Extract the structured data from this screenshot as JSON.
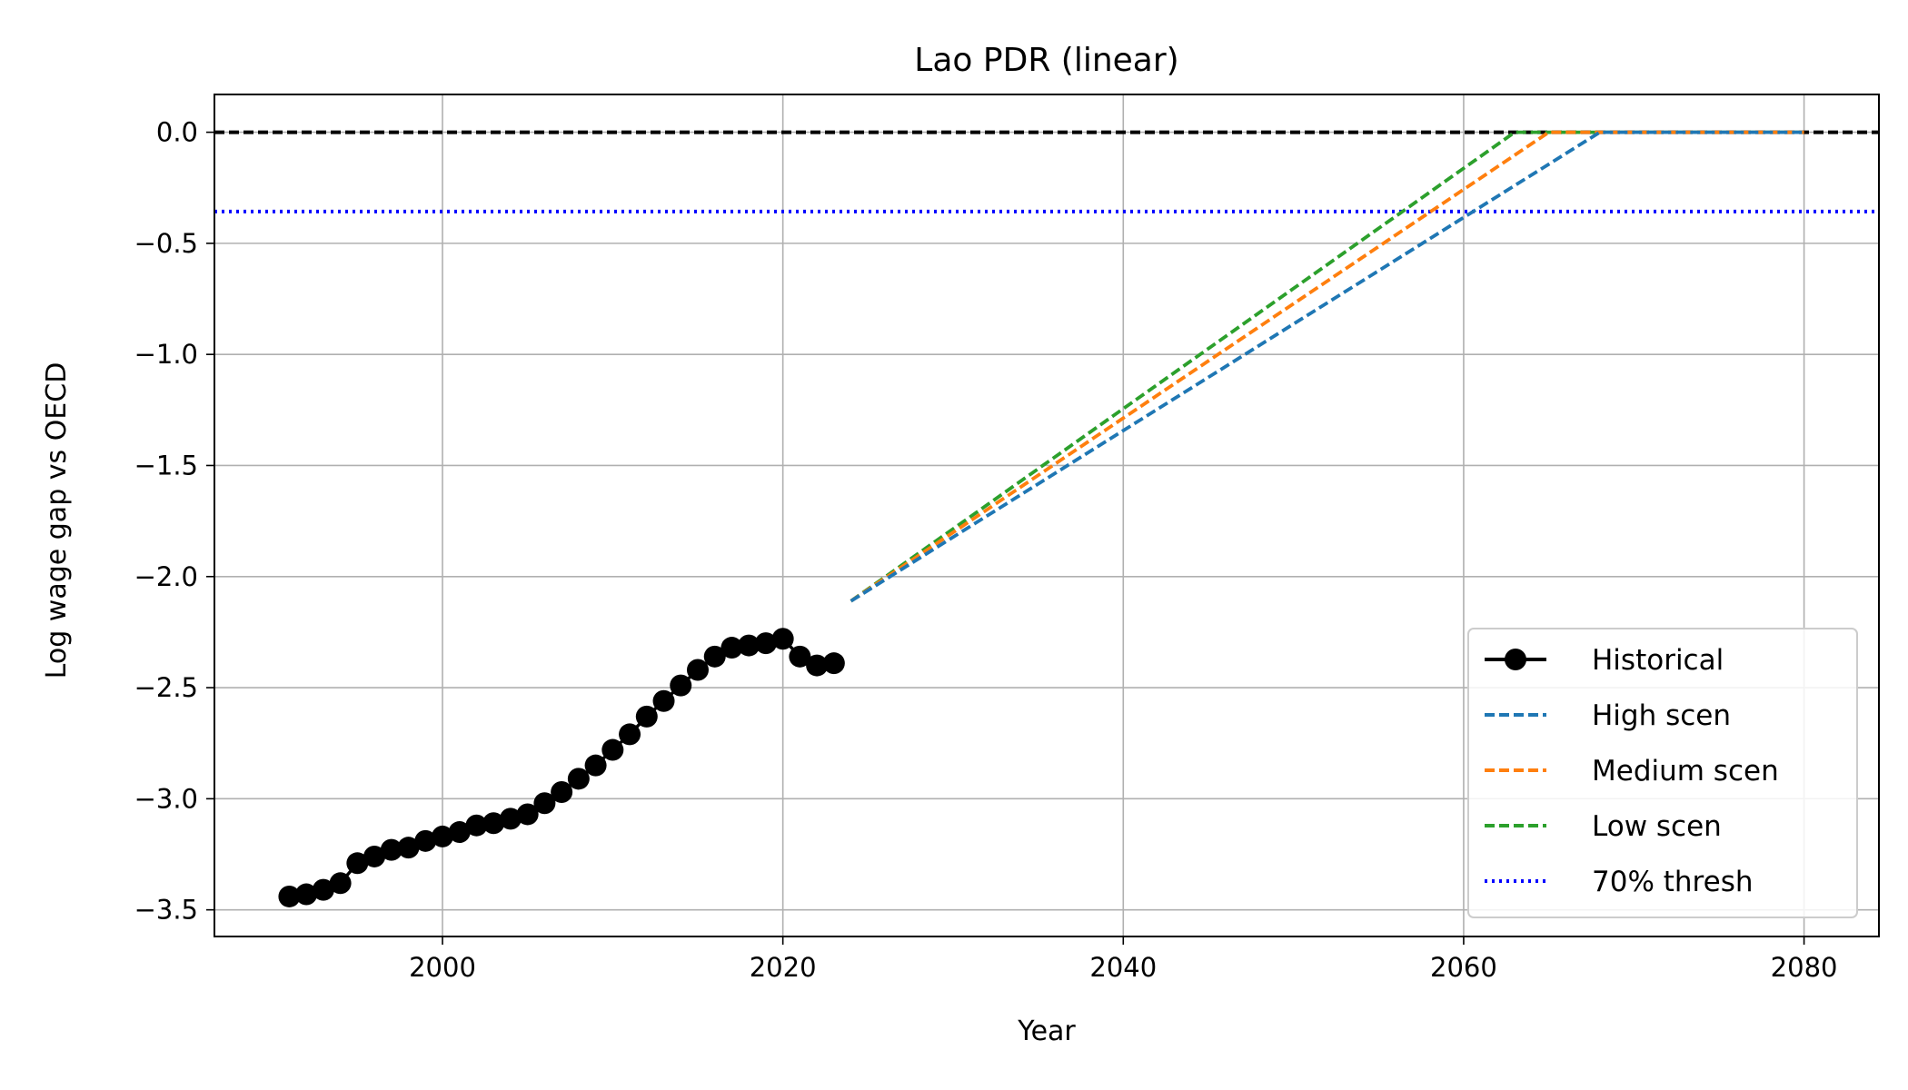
{
  "chart_data": {
    "type": "line",
    "title": "Lao PDR (linear)",
    "xlabel": "Year",
    "ylabel": "Log wage gap vs OECD",
    "xlim": [
      1986.6,
      2084.4
    ],
    "ylim": [
      -3.62,
      0.17
    ],
    "xticks": [
      2000,
      2020,
      2040,
      2060,
      2080
    ],
    "yticks": [
      0.0,
      -0.5,
      -1.0,
      -1.5,
      -2.0,
      -2.5,
      -3.0,
      -3.5
    ],
    "xtick_labels": [
      "2000",
      "2020",
      "2040",
      "2060",
      "2080"
    ],
    "ytick_labels": [
      "0.0",
      "−0.5",
      "−1.0",
      "−1.5",
      "−2.0",
      "−2.5",
      "−3.0",
      "−3.5"
    ],
    "grid": true,
    "legend_placement": "lower-right",
    "series": [
      {
        "name": "Historical",
        "color": "#000000",
        "style": "solid-marker",
        "x": [
          1991,
          1992,
          1993,
          1994,
          1995,
          1996,
          1997,
          1998,
          1999,
          2000,
          2001,
          2002,
          2003,
          2004,
          2005,
          2006,
          2007,
          2008,
          2009,
          2010,
          2011,
          2012,
          2013,
          2014,
          2015,
          2016,
          2017,
          2018,
          2019,
          2020,
          2021,
          2022,
          2023
        ],
        "y": [
          -3.44,
          -3.43,
          -3.41,
          -3.38,
          -3.29,
          -3.26,
          -3.23,
          -3.22,
          -3.19,
          -3.17,
          -3.15,
          -3.12,
          -3.11,
          -3.09,
          -3.07,
          -3.02,
          -2.97,
          -2.91,
          -2.85,
          -2.78,
          -2.71,
          -2.63,
          -2.56,
          -2.49,
          -2.42,
          -2.36,
          -2.32,
          -2.31,
          -2.3,
          -2.28,
          -2.36,
          -2.4,
          -2.39
        ]
      },
      {
        "name": "High scen",
        "color": "#1f77b4",
        "style": "dashed",
        "x": [
          2024,
          2068,
          2080
        ],
        "y": [
          -2.11,
          0.0,
          0.0
        ]
      },
      {
        "name": "Medium scen",
        "color": "#ff7f0e",
        "style": "dashed",
        "x": [
          2024,
          2065,
          2080
        ],
        "y": [
          -2.11,
          0.0,
          0.0
        ]
      },
      {
        "name": "Low scen",
        "color": "#2ca02c",
        "style": "dashed",
        "x": [
          2024,
          2063,
          2080
        ],
        "y": [
          -2.11,
          0.0,
          0.0
        ]
      }
    ],
    "reference_lines": [
      {
        "y": -0.357,
        "color": "#0000ff",
        "style": "dotted",
        "name": "70% thresh"
      },
      {
        "y": 0.0,
        "color": "#000000",
        "style": "dashed",
        "name": ""
      }
    ],
    "legend": [
      {
        "label": "Historical",
        "color": "#000000",
        "style": "solid-marker"
      },
      {
        "label": "High scen",
        "color": "#1f77b4",
        "style": "dashed"
      },
      {
        "label": "Medium scen",
        "color": "#ff7f0e",
        "style": "dashed"
      },
      {
        "label": "Low scen",
        "color": "#2ca02c",
        "style": "dashed"
      },
      {
        "label": "70% thresh",
        "color": "#0000ff",
        "style": "dotted"
      }
    ]
  }
}
